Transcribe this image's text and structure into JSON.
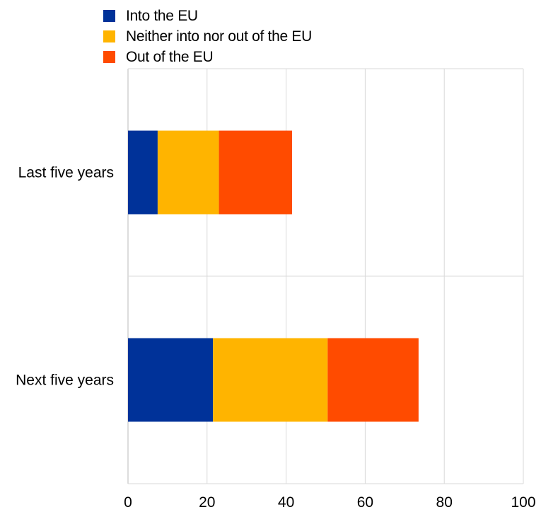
{
  "chart_data": {
    "type": "bar",
    "orientation": "horizontal",
    "stacked": true,
    "categories": [
      "Last five years",
      "Next five years"
    ],
    "series": [
      {
        "name": "Into the EU",
        "values": [
          7.5,
          21.5
        ],
        "color": "#003299"
      },
      {
        "name": "Neither into nor out of the EU",
        "values": [
          15.5,
          29.0
        ],
        "color": "#FFB400"
      },
      {
        "name": "Out of the EU",
        "values": [
          18.5,
          23.0
        ],
        "color": "#FF4B00"
      }
    ],
    "xlim": [
      0,
      100
    ],
    "xticks": [
      0,
      20,
      40,
      60,
      80,
      100
    ],
    "grid": true,
    "legend_position": "top-left"
  }
}
